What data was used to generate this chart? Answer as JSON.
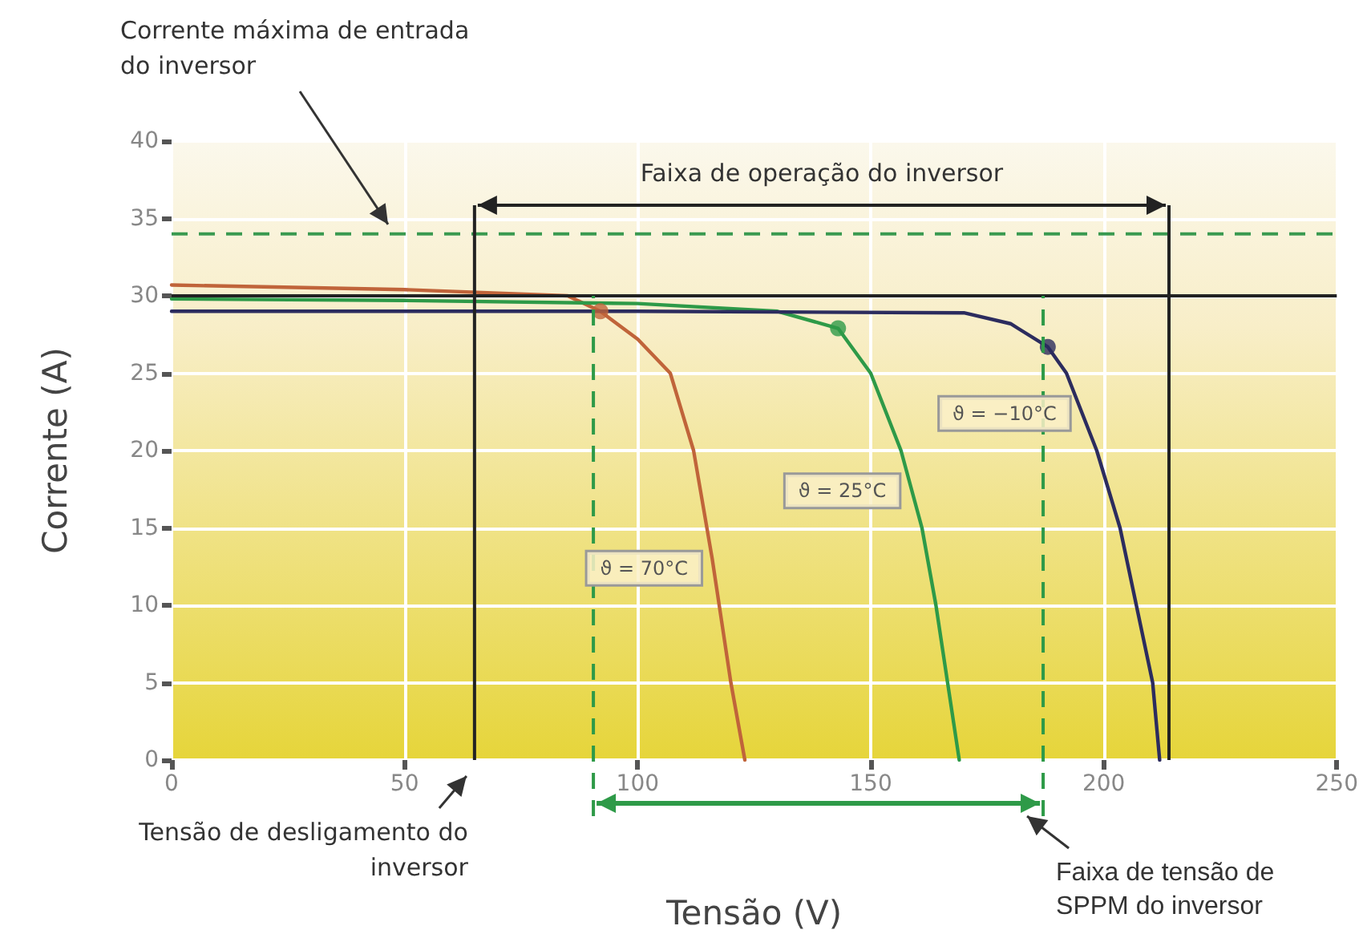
{
  "chart_data": {
    "type": "line",
    "xlabel": "Tensão (V)",
    "ylabel": "Corrente (A)",
    "xlim": [
      0,
      250
    ],
    "xticks": [
      0,
      50,
      100,
      150,
      200,
      250
    ],
    "ylim": [
      0,
      40
    ],
    "yticks": [
      0,
      5,
      10,
      15,
      20,
      25,
      30,
      35,
      40
    ],
    "grid": true,
    "marker": "none",
    "line_style": "solid",
    "series": [
      {
        "name": "ϑ = 70°C",
        "color": "#c0643a",
        "x": [
          0,
          50,
          85,
          92,
          100,
          107,
          112,
          116,
          120,
          123
        ],
        "values": [
          30.7,
          30.4,
          30,
          29,
          27.2,
          25,
          20,
          13,
          5,
          0
        ]
      },
      {
        "name": "ϑ = 25°C",
        "color": "#2e9a48",
        "x": [
          0,
          50,
          100,
          130,
          143,
          150,
          156.5,
          161,
          164,
          166.5,
          169
        ],
        "values": [
          29.8,
          29.7,
          29.5,
          29,
          27.9,
          25,
          20,
          15,
          10,
          5,
          0
        ]
      },
      {
        "name": "ϑ = −10°C",
        "color": "#2c2c5e",
        "x": [
          0,
          100,
          170,
          180,
          188,
          192,
          198.5,
          203.5,
          207,
          210.5,
          212
        ],
        "values": [
          29,
          29,
          28.9,
          28.2,
          26.7,
          25,
          20,
          15,
          10,
          5,
          0
        ]
      },
      {
        "type": "scatter",
        "marker": "circle",
        "x": [
          92,
          143,
          188
        ],
        "values": [
          29,
          27.9,
          26.7
        ],
        "colors": [
          "#c0643a",
          "#2e9a48",
          "#2c2c5e"
        ]
      }
    ],
    "ref_lines": [
      {
        "axis": "y",
        "value": 34,
        "label": "Corrente máxima de entrada do inversor",
        "color": "#3a9a50",
        "line_style": "dashed"
      },
      {
        "axis": "y",
        "value": 30,
        "color": "#222222",
        "line_style": "solid"
      },
      {
        "axis": "x",
        "value": 65,
        "label": "Tensão de desligamento do inversor",
        "color": "#222222",
        "line_style": "solid"
      },
      {
        "axis": "x",
        "value": 214,
        "color": "#222222",
        "line_style": "solid"
      },
      {
        "axis": "x",
        "value": 90.5,
        "color": "#2e9a48",
        "line_style": "dashed"
      },
      {
        "axis": "x",
        "value": 187,
        "color": "#2e9a48",
        "line_style": "dashed"
      }
    ],
    "annotations": [
      "Faixa de operação do inversor",
      "Faixa de tensão de SPPM do inversor"
    ]
  }
}
